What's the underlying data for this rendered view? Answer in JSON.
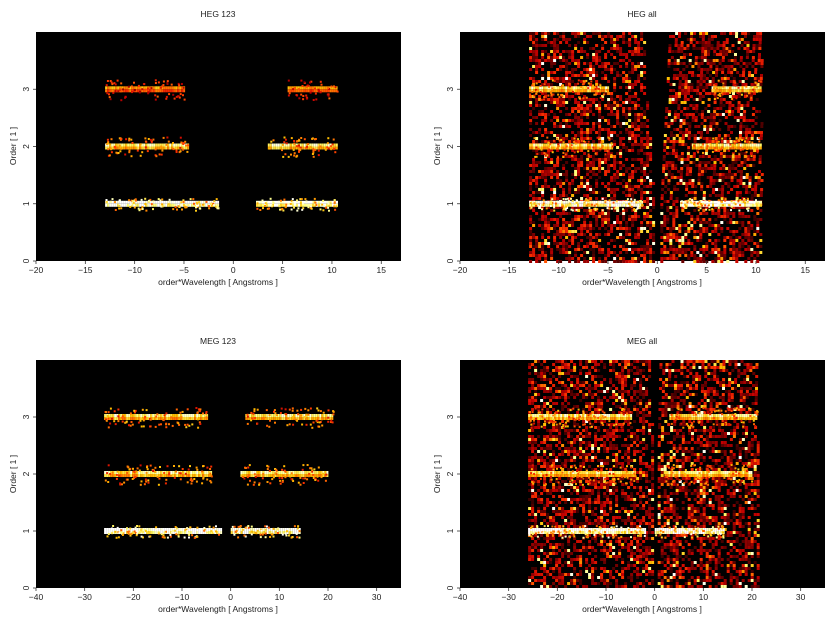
{
  "figure": {
    "panels": [
      {
        "id": "heg-123",
        "title": "HEG 123",
        "xlabel": "order*Wavelength [ Angstroms ]",
        "ylabel": "Order [ 1 ]",
        "xlim": [
          -20,
          17
        ],
        "ylim": [
          0,
          4
        ],
        "xticks": [
          -20,
          -15,
          -10,
          -5,
          0,
          5,
          10,
          15
        ],
        "yticks": [
          0,
          1,
          2,
          3
        ]
      },
      {
        "id": "heg-all",
        "title": "HEG all",
        "xlabel": "order*Wavelength [ Angstroms ]",
        "ylabel": "Order [ 1 ]",
        "xlim": [
          -20,
          17
        ],
        "ylim": [
          0,
          4
        ],
        "xticks": [
          -20,
          -15,
          -10,
          -5,
          0,
          5,
          10,
          15
        ],
        "yticks": [
          0,
          1,
          2,
          3
        ]
      },
      {
        "id": "meg-123",
        "title": "MEG 123",
        "xlabel": "order*Wavelength [ Angstroms ]",
        "ylabel": "Order [ 1 ]",
        "xlim": [
          -40,
          35
        ],
        "ylim": [
          0,
          4
        ],
        "xticks": [
          -40,
          -30,
          -20,
          -10,
          0,
          10,
          20,
          30
        ],
        "yticks": [
          0,
          1,
          2,
          3
        ]
      },
      {
        "id": "meg-all",
        "title": "MEG all",
        "xlabel": "order*Wavelength [ Angstroms ]",
        "ylabel": "Order [ 1 ]",
        "xlim": [
          -40,
          35
        ],
        "ylim": [
          0,
          4
        ],
        "xticks": [
          -40,
          -30,
          -20,
          -10,
          0,
          10,
          20,
          30
        ],
        "yticks": [
          0,
          1,
          2,
          3
        ]
      }
    ]
  },
  "chart_data": [
    {
      "type": "heatmap",
      "title": "HEG 123",
      "xlabel": "order*Wavelength [ Angstroms ]",
      "ylabel": "Order [ 1 ]",
      "xlim": [
        -20,
        17
      ],
      "ylim": [
        0,
        4
      ],
      "colormap": "black-red-yellow-white",
      "bands": [
        {
          "order": 1,
          "x_ranges": [
            [
              -13,
              -1.5
            ],
            [
              2.3,
              10.5
            ]
          ],
          "intensity": "high"
        },
        {
          "order": 2,
          "x_ranges": [
            [
              -13,
              -4.5
            ],
            [
              3.5,
              10.5
            ]
          ],
          "intensity": "medium"
        },
        {
          "order": 3,
          "x_ranges": [
            [
              -13,
              -5
            ],
            [
              5.5,
              10.5
            ]
          ],
          "intensity": "low"
        }
      ]
    },
    {
      "type": "heatmap",
      "title": "HEG all",
      "xlabel": "order*Wavelength [ Angstroms ]",
      "ylabel": "Order [ 1 ]",
      "xlim": [
        -20,
        17
      ],
      "ylim": [
        0,
        4
      ],
      "colormap": "black-red-yellow-white",
      "bands": [
        {
          "order": 1,
          "x_ranges": [
            [
              -13,
              -1.5
            ],
            [
              2.3,
              10.5
            ]
          ],
          "intensity": "high"
        },
        {
          "order": 2,
          "x_ranges": [
            [
              -13,
              -4.5
            ],
            [
              3.5,
              10.5
            ]
          ],
          "intensity": "medium"
        },
        {
          "order": 3,
          "x_ranges": [
            [
              -13,
              -5
            ],
            [
              5.5,
              10.5
            ]
          ],
          "intensity": "medium"
        }
      ],
      "background_wedges": [
        [
          -13,
          -1.5
        ],
        [
          1.2,
          10.5
        ]
      ]
    },
    {
      "type": "heatmap",
      "title": "MEG 123",
      "xlabel": "order*Wavelength [ Angstroms ]",
      "ylabel": "Order [ 1 ]",
      "xlim": [
        -40,
        35
      ],
      "ylim": [
        0,
        4
      ],
      "colormap": "black-red-yellow-white",
      "bands": [
        {
          "order": 1,
          "x_ranges": [
            [
              -26,
              -2
            ],
            [
              0,
              14
            ]
          ],
          "intensity": "high"
        },
        {
          "order": 2,
          "x_ranges": [
            [
              -26,
              -4
            ],
            [
              2,
              20
            ]
          ],
          "intensity": "medium"
        },
        {
          "order": 3,
          "x_ranges": [
            [
              -26,
              -5
            ],
            [
              3,
              21
            ]
          ],
          "intensity": "medium"
        }
      ]
    },
    {
      "type": "heatmap",
      "title": "MEG all",
      "xlabel": "order*Wavelength [ Angstroms ]",
      "ylabel": "Order [ 1 ]",
      "xlim": [
        -40,
        35
      ],
      "ylim": [
        0,
        4
      ],
      "colormap": "black-red-yellow-white",
      "bands": [
        {
          "order": 1,
          "x_ranges": [
            [
              -26,
              -2
            ],
            [
              0,
              14
            ]
          ],
          "intensity": "high"
        },
        {
          "order": 2,
          "x_ranges": [
            [
              -26,
              -4
            ],
            [
              2,
              20
            ]
          ],
          "intensity": "medium"
        },
        {
          "order": 3,
          "x_ranges": [
            [
              -26,
              -5
            ],
            [
              3,
              21
            ]
          ],
          "intensity": "medium"
        }
      ],
      "background_wedges": [
        [
          -26,
          -1
        ],
        [
          1,
          21
        ]
      ]
    }
  ]
}
